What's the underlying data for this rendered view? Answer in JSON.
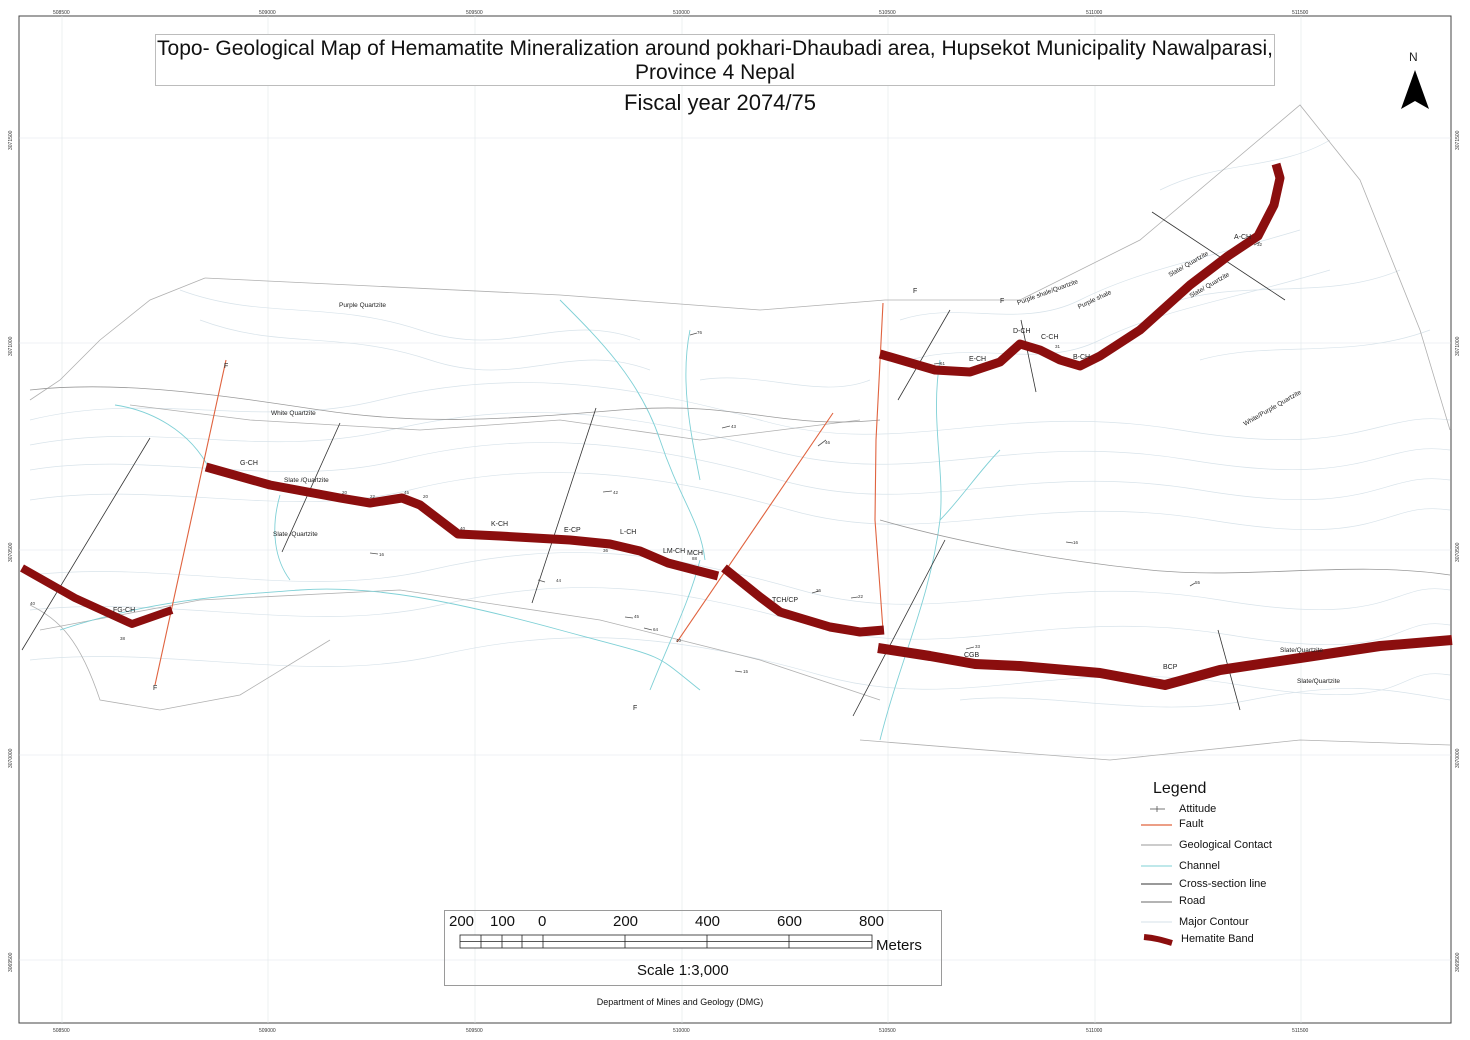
{
  "title": {
    "line1": "Topo- Geological Map of Hemamatite Mineralization around pokhari-Dhaubadi area, Hupsekot Municipality Nawalparasi,",
    "line2": "Province 4 Nepal",
    "fiscal_year": "Fiscal year 2074/75"
  },
  "north_arrow": {
    "label": "N",
    "icon": "north-arrow-icon"
  },
  "grid_labels": {
    "easting": [
      "508500",
      "509000",
      "509500",
      "510000",
      "510500",
      "511000",
      "511500"
    ],
    "northing": [
      "3071500",
      "3071000",
      "3070500",
      "3070000",
      "3069500"
    ]
  },
  "band_labels": {
    "a_ch": "A-CH",
    "b_ch": "B-CH",
    "c_ch": "C-CH",
    "d_ch": "D-CH",
    "e_ch": "E-CH",
    "fg_ch": "FG-CH",
    "g_ch": "G-CH",
    "k_ch": "K-CH",
    "e_cp": "E-CP",
    "l_ch": "L-CH",
    "lm_ch": "LM-CH",
    "mch": "MCH",
    "tch_cp": "TCH/CP",
    "cgb": "CGB",
    "bcp": "BCP"
  },
  "rock_labels": {
    "purple_quartzite": "Purple Quartzite",
    "white_quartzite": "White Quartzite",
    "slate_quartzite_1": "Slate /Quartzite",
    "slate_quartzite_2": "Slate /Quartzite",
    "purple_shale_quartzite": "Purple shale/Quartzite",
    "purple_shale": "Purple shale",
    "slate_quartzite_3": "Slate/ Quartzite",
    "slate_quartzite_4": "Slate/ Quartzite",
    "white_purple_quartzite": "White/Purple Quartzite",
    "slate_quartzite_5": "Slate/Quartzite",
    "slate_quartzite_6": "Slate/Quartzite"
  },
  "fault_labels": {
    "f1": "F",
    "f2": "F",
    "f3": "F",
    "f4": "F",
    "f5": "F"
  },
  "legend": {
    "title": "Legend",
    "items": [
      {
        "label": "Attitude",
        "color": "#555555"
      },
      {
        "label": "Fault",
        "color": "#e0633f"
      },
      {
        "label": "Geological Contact",
        "color": "#9a9a9a"
      },
      {
        "label": "Channel",
        "color": "#7fd0d6"
      },
      {
        "label": "Cross-section line",
        "color": "#333333"
      },
      {
        "label": "Road",
        "color": "#6a6a6a"
      },
      {
        "label": "Major Contour",
        "color": "#d6e2e8"
      },
      {
        "label": "Hematite Band",
        "color": "#8b0e0e"
      }
    ]
  },
  "scale_bar": {
    "ticks": [
      "200",
      "100",
      "0",
      "200",
      "400",
      "600",
      "800"
    ],
    "units": "Meters",
    "scale_text": "Scale 1:3,000"
  },
  "credit": "Department of Mines and Geology (DMG)",
  "colors": {
    "hematite": "#8b0e0e",
    "fault": "#e0633f",
    "channel": "#7fd0d6",
    "contour": "#d8e3ea",
    "cross_section": "#333333",
    "contact": "#b0b0b0"
  }
}
